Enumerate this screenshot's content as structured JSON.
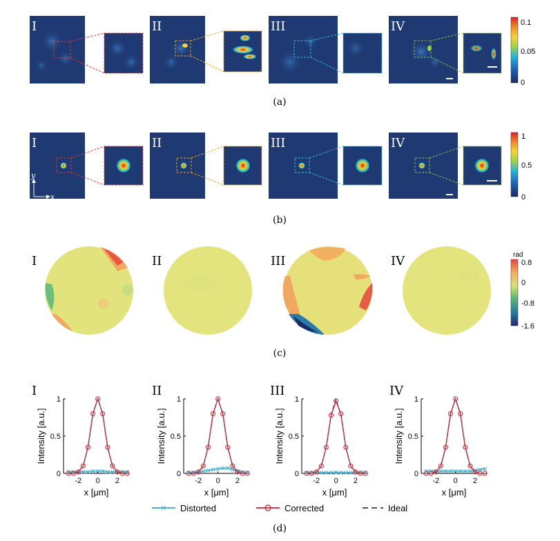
{
  "panel_labels": {
    "a": "(a)",
    "b": "(b)",
    "c": "(c)",
    "d": "(d)"
  },
  "case_labels": [
    "I",
    "II",
    "III",
    "IV"
  ],
  "colors": {
    "background": "#1f3a73",
    "case_I": "#e2372f",
    "case_II": "#f0a21c",
    "case_III": "#3ab7e6",
    "case_IV": "#7dc24b",
    "distorted": "#4fb3cf",
    "corrected": "#d23b4a",
    "ideal": "#555555"
  },
  "colorbar_a": {
    "ticks": [
      "0.1",
      "0.05",
      "0"
    ]
  },
  "colorbar_b": {
    "ticks": [
      "1",
      "0.5",
      "0"
    ]
  },
  "colorbar_c": {
    "unit": "rad",
    "ticks": [
      "0.8",
      "0",
      "-0.8",
      "-1.6"
    ]
  },
  "axis_b": {
    "y": "y",
    "x": "x"
  },
  "chart_data": [
    {
      "type": "line",
      "title": "I",
      "xlabel": "x [μm]",
      "ylabel": "Intensity [a.u.]",
      "xlim": [
        -3.5,
        3.2
      ],
      "ylim": [
        0,
        1
      ],
      "xticks": [
        "-2",
        "0",
        "2"
      ],
      "yticks": [
        "0",
        "0.5",
        "1"
      ],
      "x": [
        -3,
        -2.5,
        -2,
        -1.5,
        -1,
        -0.5,
        0,
        0.5,
        1,
        1.5,
        2,
        2.5,
        3
      ],
      "series": [
        {
          "name": "Distorted",
          "values": [
            0.02,
            0.02,
            0.02,
            0.02,
            0.02,
            0.03,
            0.03,
            0.03,
            0.02,
            0.02,
            0.02,
            0.02,
            0.02
          ]
        },
        {
          "name": "Corrected",
          "values": [
            0.0,
            0.0,
            0.02,
            0.1,
            0.35,
            0.8,
            1.0,
            0.8,
            0.35,
            0.1,
            0.02,
            0.0,
            0.0
          ]
        },
        {
          "name": "Ideal",
          "values": [
            0.0,
            0.0,
            0.02,
            0.1,
            0.35,
            0.8,
            1.0,
            0.8,
            0.35,
            0.1,
            0.02,
            0.0,
            0.0
          ]
        }
      ]
    },
    {
      "type": "line",
      "title": "II",
      "xlabel": "x [μm]",
      "ylabel": "Intensity [a.u.]",
      "xlim": [
        -3.5,
        3.2
      ],
      "ylim": [
        0,
        1
      ],
      "xticks": [
        "-2",
        "0",
        "2"
      ],
      "yticks": [
        "0",
        "0.5",
        "1"
      ],
      "x": [
        -3,
        -2.5,
        -2,
        -1.5,
        -1,
        -0.5,
        0,
        0.5,
        1,
        1.5,
        2,
        2.5,
        3
      ],
      "series": [
        {
          "name": "Distorted",
          "values": [
            0.01,
            0.01,
            0.02,
            0.03,
            0.04,
            0.05,
            0.06,
            0.07,
            0.07,
            0.05,
            0.03,
            0.02,
            0.01
          ]
        },
        {
          "name": "Corrected",
          "values": [
            0.0,
            0.0,
            0.02,
            0.1,
            0.35,
            0.8,
            1.0,
            0.8,
            0.35,
            0.1,
            0.02,
            0.0,
            0.0
          ]
        },
        {
          "name": "Ideal",
          "values": [
            0.0,
            0.0,
            0.02,
            0.1,
            0.35,
            0.8,
            1.0,
            0.8,
            0.35,
            0.1,
            0.02,
            0.0,
            0.0
          ]
        }
      ]
    },
    {
      "type": "line",
      "title": "III",
      "xlabel": "x [μm]",
      "ylabel": "Intensity [a.u.]",
      "xlim": [
        -3.5,
        3.2
      ],
      "ylim": [
        0,
        1
      ],
      "xticks": [
        "-2",
        "0",
        "2"
      ],
      "yticks": [
        "0",
        "0.5",
        "1"
      ],
      "x": [
        -3,
        -2.5,
        -2,
        -1.5,
        -1,
        -0.5,
        0,
        0.5,
        1,
        1.5,
        2,
        2.5,
        3
      ],
      "series": [
        {
          "name": "Distorted",
          "values": [
            0.01,
            0.01,
            0.01,
            0.01,
            0.01,
            0.01,
            0.01,
            0.01,
            0.01,
            0.01,
            0.01,
            0.01,
            0.01
          ]
        },
        {
          "name": "Corrected",
          "values": [
            0.0,
            0.0,
            0.02,
            0.1,
            0.35,
            0.78,
            0.97,
            0.8,
            0.35,
            0.1,
            0.02,
            0.0,
            0.0
          ]
        },
        {
          "name": "Ideal",
          "values": [
            0.0,
            0.0,
            0.02,
            0.1,
            0.35,
            0.8,
            1.0,
            0.8,
            0.35,
            0.1,
            0.02,
            0.0,
            0.0
          ]
        }
      ]
    },
    {
      "type": "line",
      "title": "IV",
      "xlabel": "x [μm]",
      "ylabel": "Intensity [a.u.]",
      "xlim": [
        -3.5,
        3.2
      ],
      "ylim": [
        0,
        1
      ],
      "xticks": [
        "-2",
        "0",
        "2"
      ],
      "yticks": [
        "0",
        "0.5",
        "1"
      ],
      "x": [
        -3,
        -2.5,
        -2,
        -1.5,
        -1,
        -0.5,
        0,
        0.5,
        1,
        1.5,
        2,
        2.5,
        3
      ],
      "series": [
        {
          "name": "Distorted",
          "values": [
            0.03,
            0.03,
            0.03,
            0.03,
            0.03,
            0.03,
            0.03,
            0.03,
            0.03,
            0.03,
            0.04,
            0.05,
            0.06
          ]
        },
        {
          "name": "Corrected",
          "values": [
            0.0,
            0.0,
            0.02,
            0.1,
            0.35,
            0.8,
            1.0,
            0.8,
            0.35,
            0.1,
            0.02,
            0.0,
            0.0
          ]
        },
        {
          "name": "Ideal",
          "values": [
            0.0,
            0.0,
            0.02,
            0.1,
            0.35,
            0.8,
            1.0,
            0.8,
            0.35,
            0.1,
            0.02,
            0.0,
            0.0
          ]
        }
      ]
    }
  ],
  "legend": {
    "distorted": "Distorted",
    "corrected": "Corrected",
    "ideal": "Ideal"
  }
}
